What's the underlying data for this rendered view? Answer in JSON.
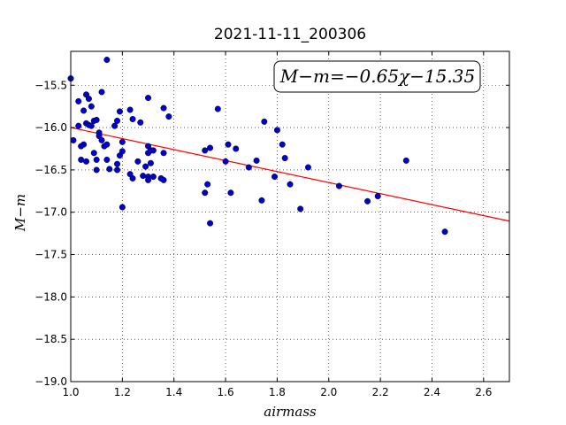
{
  "chart_data": {
    "type": "scatter",
    "title": "2021-11-11_200306",
    "xlabel": "airmass",
    "ylabel": "M−m",
    "xlim": [
      1.0,
      2.7
    ],
    "ylim": [
      -19.0,
      -15.1
    ],
    "x_ticks": [
      "1.0",
      "1.2",
      "1.4",
      "1.6",
      "1.8",
      "2.0",
      "2.2",
      "2.4",
      "2.6"
    ],
    "y_ticks": [
      "−15.5",
      "−16.0",
      "−16.5",
      "−17.0",
      "−17.5",
      "−18.0",
      "−18.5",
      "−19.0"
    ],
    "grid": true,
    "fit_label": "M−m=−0.65χ−15.35",
    "fit_line": {
      "slope": -0.65,
      "intercept": -15.35,
      "color": "#ff0000"
    },
    "point_color": "#0000cc",
    "points": [
      [
        1.0,
        -15.42
      ],
      [
        1.01,
        -16.15
      ],
      [
        1.03,
        -15.69
      ],
      [
        1.03,
        -15.98
      ],
      [
        1.04,
        -16.38
      ],
      [
        1.04,
        -16.22
      ],
      [
        1.05,
        -15.8
      ],
      [
        1.05,
        -16.2
      ],
      [
        1.06,
        -15.61
      ],
      [
        1.06,
        -15.95
      ],
      [
        1.06,
        -16.4
      ],
      [
        1.07,
        -15.66
      ],
      [
        1.07,
        -15.97
      ],
      [
        1.08,
        -15.98
      ],
      [
        1.08,
        -15.75
      ],
      [
        1.09,
        -15.92
      ],
      [
        1.09,
        -16.3
      ],
      [
        1.1,
        -15.91
      ],
      [
        1.1,
        -16.38
      ],
      [
        1.1,
        -16.5
      ],
      [
        1.11,
        -16.06
      ],
      [
        1.11,
        -16.1
      ],
      [
        1.12,
        -15.58
      ],
      [
        1.12,
        -16.15
      ],
      [
        1.13,
        -16.22
      ],
      [
        1.14,
        -16.2
      ],
      [
        1.14,
        -16.38
      ],
      [
        1.14,
        -15.2
      ],
      [
        1.15,
        -16.49
      ],
      [
        1.17,
        -15.98
      ],
      [
        1.18,
        -15.92
      ],
      [
        1.18,
        -16.43
      ],
      [
        1.18,
        -16.5
      ],
      [
        1.19,
        -15.81
      ],
      [
        1.19,
        -16.33
      ],
      [
        1.2,
        -16.17
      ],
      [
        1.2,
        -16.28
      ],
      [
        1.2,
        -16.94
      ],
      [
        1.23,
        -16.55
      ],
      [
        1.23,
        -15.79
      ],
      [
        1.24,
        -15.9
      ],
      [
        1.24,
        -16.6
      ],
      [
        1.26,
        -16.4
      ],
      [
        1.27,
        -15.94
      ],
      [
        1.28,
        -16.57
      ],
      [
        1.29,
        -16.46
      ],
      [
        1.3,
        -16.22
      ],
      [
        1.3,
        -16.3
      ],
      [
        1.3,
        -16.58
      ],
      [
        1.3,
        -16.62
      ],
      [
        1.3,
        -15.65
      ],
      [
        1.31,
        -16.27
      ],
      [
        1.31,
        -16.42
      ],
      [
        1.32,
        -16.27
      ],
      [
        1.32,
        -16.58
      ],
      [
        1.35,
        -16.6
      ],
      [
        1.36,
        -15.77
      ],
      [
        1.36,
        -16.3
      ],
      [
        1.36,
        -16.62
      ],
      [
        1.38,
        -15.87
      ],
      [
        1.52,
        -16.27
      ],
      [
        1.52,
        -16.77
      ],
      [
        1.53,
        -16.67
      ],
      [
        1.54,
        -16.24
      ],
      [
        1.54,
        -17.13
      ],
      [
        1.57,
        -15.78
      ],
      [
        1.6,
        -16.4
      ],
      [
        1.61,
        -16.2
      ],
      [
        1.62,
        -16.77
      ],
      [
        1.64,
        -16.25
      ],
      [
        1.69,
        -16.47
      ],
      [
        1.72,
        -16.39
      ],
      [
        1.74,
        -16.86
      ],
      [
        1.75,
        -15.93
      ],
      [
        1.79,
        -16.58
      ],
      [
        1.8,
        -16.03
      ],
      [
        1.82,
        -16.2
      ],
      [
        1.83,
        -16.36
      ],
      [
        1.85,
        -16.67
      ],
      [
        1.89,
        -16.96
      ],
      [
        1.92,
        -16.47
      ],
      [
        2.04,
        -16.69
      ],
      [
        2.15,
        -16.87
      ],
      [
        2.19,
        -16.81
      ],
      [
        2.3,
        -16.39
      ],
      [
        2.45,
        -17.23
      ]
    ]
  }
}
